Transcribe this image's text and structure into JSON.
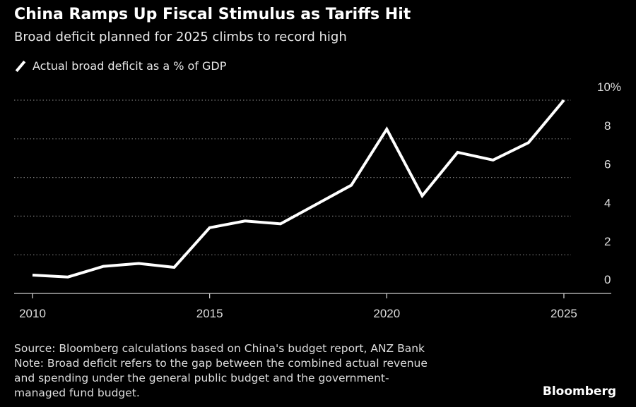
{
  "header": {
    "title": "China Ramps Up Fiscal Stimulus as Tariffs Hit",
    "subtitle": "Broad deficit planned for 2025 climbs to record high"
  },
  "chart_data": {
    "type": "line",
    "title": "China Ramps Up Fiscal Stimulus as Tariffs Hit",
    "subtitle": "Broad deficit planned for 2025 climbs to record high",
    "xlabel": "",
    "ylabel": "",
    "x": [
      2010,
      2011,
      2012,
      2013,
      2014,
      2015,
      2016,
      2017,
      2018,
      2019,
      2020,
      2021,
      2022,
      2023,
      2024,
      2025
    ],
    "series": [
      {
        "name": "Actual broad deficit as a % of GDP",
        "color": "#ffffff",
        "values": [
          0.95,
          0.85,
          1.4,
          1.55,
          1.35,
          3.4,
          3.75,
          3.6,
          4.6,
          5.6,
          8.5,
          5.05,
          7.3,
          6.9,
          7.8,
          10.0
        ]
      }
    ],
    "xticks": [
      2010,
      2015,
      2020,
      2025
    ],
    "xtick_labels": [
      "2010",
      "2015",
      "2020",
      "2025"
    ],
    "yticks": [
      0,
      2,
      4,
      6,
      8,
      10
    ],
    "ytick_labels": [
      "0",
      "2",
      "4",
      "6",
      "8",
      "10%"
    ],
    "xlim": [
      2009.5,
      2026.3
    ],
    "ylim": [
      -0.1,
      10
    ],
    "grid": true,
    "legend": "top-left"
  },
  "footer": {
    "source": "Source: Bloomberg calculations based on China's budget report, ANZ Bank",
    "note_lines": [
      "Note: Broad deficit refers to the gap between the combined actual revenue",
      "and spending under the general public budget and the government-",
      "managed fund budget."
    ],
    "brand": "Bloomberg"
  }
}
